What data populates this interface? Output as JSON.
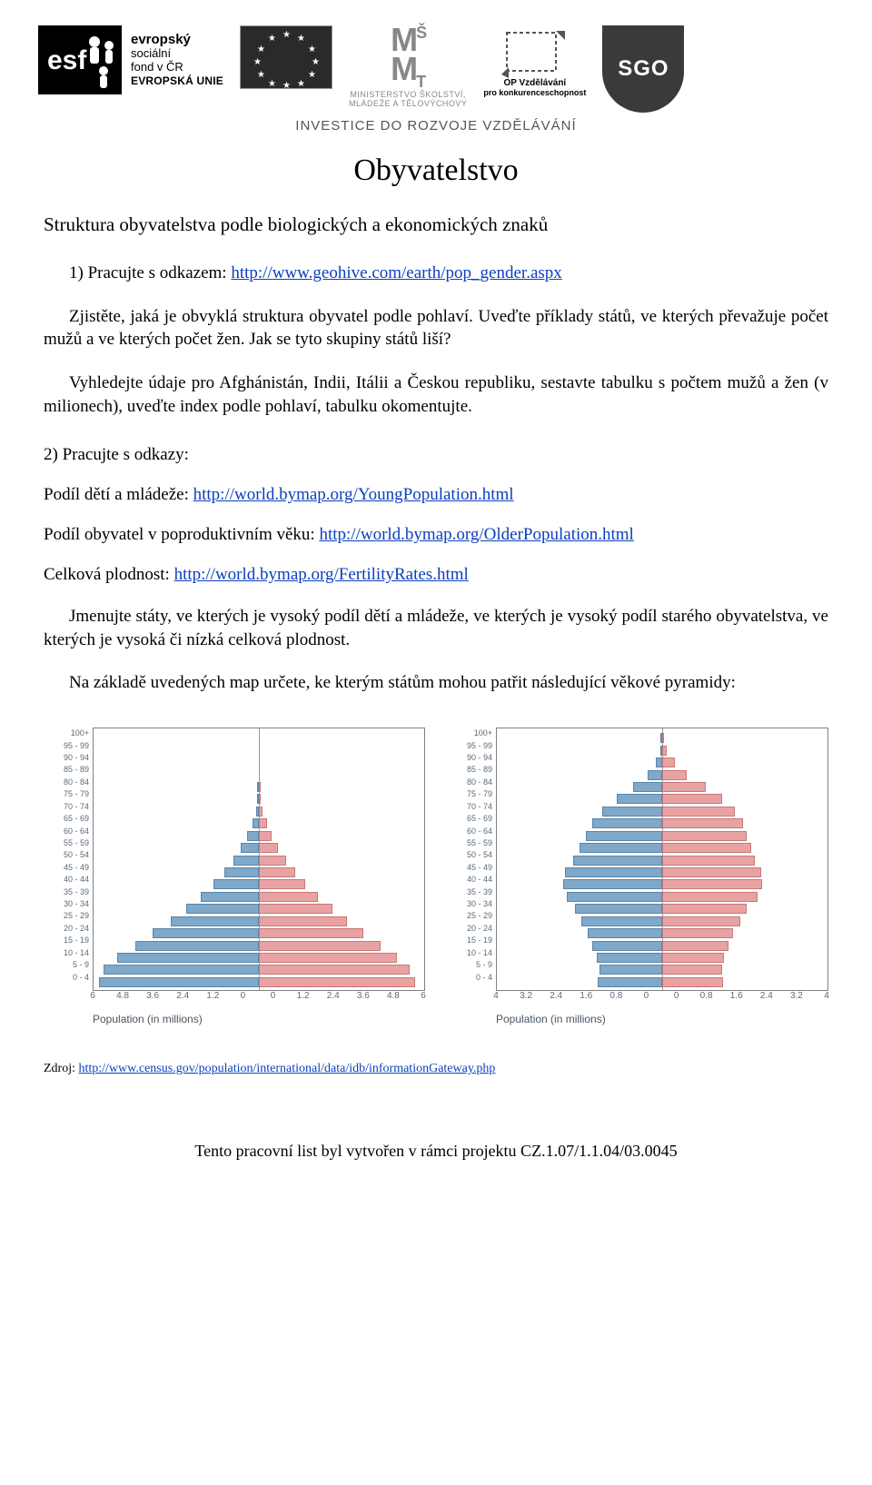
{
  "header": {
    "esf": {
      "line1": "evropský",
      "line2": "sociální",
      "line3": "fond v ČR",
      "line4": "EVROPSKÁ UNIE"
    },
    "msmt": {
      "mark": "MŠMT",
      "line1": "MINISTERSTVO ŠKOLSTVÍ,",
      "line2": "MLÁDEŽE A TĚLOVÝCHOVY"
    },
    "op": {
      "line1": "OP Vzdělávání",
      "line2": "pro konkurenceschopnost"
    },
    "sgo": {
      "text": "SGO"
    },
    "invest": "INVESTICE DO ROZVOJE VZDĚLÁVÁNÍ"
  },
  "title": "Obyvatelstvo",
  "subtitle": "Struktura obyvatelstva podle biologických a ekonomických znaků",
  "p1_lead": "1) Pracujte s odkazem: ",
  "p1_link": "http://www.geohive.com/earth/pop_gender.aspx",
  "p2": "Zjistěte, jaká je obvyklá struktura obyvatel podle pohlaví. Uveďte příklady států, ve kterých převažuje počet mužů a ve kterých počet žen. Jak se tyto skupiny států liší?",
  "p3": "Vyhledejte údaje pro Afghánistán, Indii, Itálii a Českou republiku, sestavte tabulku s počtem mužů a žen (v milionech), uveďte index podle pohlaví, tabulku okomentujte.",
  "sec2_head": "2) Pracujte s odkazy:",
  "links": [
    {
      "label": "Podíl dětí a mládeže: ",
      "url": "http://world.bymap.org/YoungPopulation.html"
    },
    {
      "label": "Podíl obyvatel v poproduktivním věku: ",
      "url": "http://world.bymap.org/OlderPopulation.html"
    },
    {
      "label": "Celková plodnost: ",
      "url": "http://world.bymap.org/FertilityRates.html"
    }
  ],
  "p4": "Jmenujte státy, ve kterých je vysoký podíl dětí a mládeže, ve kterých je vysoký podíl starého obyvatelstva, ve kterých je vysoká či nízká celková plodnost.",
  "p5": "Na základě uvedených map určete, ke kterým státům mohou patřit následující věkové pyramidy:",
  "pyramids": {
    "age_labels": [
      "100+",
      "95 - 99",
      "90 - 94",
      "85 - 89",
      "80 - 84",
      "75 - 79",
      "70 - 74",
      "65 - 69",
      "60 - 64",
      "55 - 59",
      "50 - 54",
      "45 - 49",
      "40 - 44",
      "35 - 39",
      "30 - 34",
      "25 - 29",
      "20 - 24",
      "15 - 19",
      "10 - 14",
      "5 - 9",
      "0 - 4"
    ],
    "male_color": "#7fa8c9",
    "male_border": "#5a86aa",
    "female_color": "#e8a2a2",
    "female_border": "#c97878",
    "frame_border": "#808080",
    "axis_caption": "Population (in millions)",
    "left": {
      "x_ticks": [
        "6",
        "4.8",
        "3.6",
        "2.4",
        "1.2",
        "0",
        "0",
        "1.2",
        "2.4",
        "3.6",
        "4.8",
        "6"
      ],
      "x_max": 6.4,
      "male": [
        0.0,
        0.0,
        0.0,
        0.01,
        0.02,
        0.05,
        0.12,
        0.25,
        0.45,
        0.7,
        1.0,
        1.35,
        1.75,
        2.25,
        2.8,
        3.4,
        4.1,
        4.8,
        5.5,
        6.0,
        6.2
      ],
      "female": [
        0.0,
        0.0,
        0.0,
        0.01,
        0.03,
        0.07,
        0.15,
        0.3,
        0.5,
        0.75,
        1.05,
        1.4,
        1.8,
        2.3,
        2.85,
        3.4,
        4.05,
        4.7,
        5.35,
        5.85,
        6.05
      ]
    },
    "right": {
      "x_ticks": [
        "4",
        "3.2",
        "2.4",
        "1.6",
        "0.8",
        "0",
        "0",
        "0.8",
        "1.6",
        "2.4",
        "3.2",
        "4"
      ],
      "x_max": 4.0,
      "male": [
        0.02,
        0.05,
        0.15,
        0.35,
        0.7,
        1.1,
        1.45,
        1.7,
        1.85,
        2.0,
        2.15,
        2.35,
        2.4,
        2.3,
        2.1,
        1.95,
        1.8,
        1.7,
        1.58,
        1.52,
        1.55
      ],
      "female": [
        0.05,
        0.12,
        0.3,
        0.6,
        1.05,
        1.45,
        1.75,
        1.95,
        2.05,
        2.15,
        2.25,
        2.4,
        2.42,
        2.3,
        2.05,
        1.9,
        1.72,
        1.6,
        1.5,
        1.45,
        1.48
      ]
    }
  },
  "source_label": "Zdroj: ",
  "source_url": "http://www.census.gov/population/international/data/idb/informationGateway.php",
  "footer": "Tento pracovní list byl vytvořen v rámci projektu CZ.1.07/1.1.04/03.0045"
}
